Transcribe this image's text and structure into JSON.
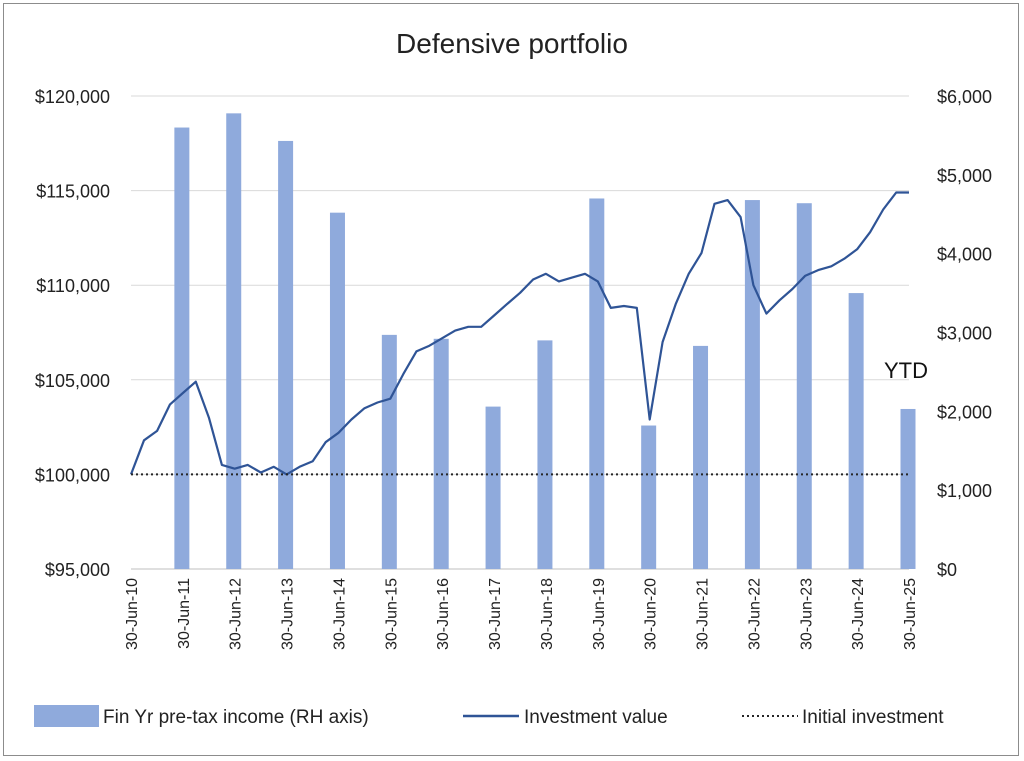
{
  "chart_data": {
    "type": "bar",
    "title": "Defensive portfolio",
    "left_axis": {
      "min": 95000,
      "max": 120000,
      "step": 5000,
      "tick_labels": [
        "$95,000",
        "$100,000",
        "$105,000",
        "$110,000",
        "$115,000",
        "$120,000"
      ]
    },
    "right_axis": {
      "min": 0,
      "max": 6000,
      "step": 1000,
      "tick_labels": [
        "$0",
        "$1,000",
        "$2,000",
        "$3,000",
        "$4,000",
        "$5,000",
        "$6,000"
      ]
    },
    "x_tick_labels": [
      "30-Jun-10",
      "30-Jun-11",
      "30-Jun-12",
      "30-Jun-13",
      "30-Jun-14",
      "30-Jun-15",
      "30-Jun-16",
      "30-Jun-17",
      "30-Jun-18",
      "30-Jun-19",
      "30-Jun-20",
      "30-Jun-21",
      "30-Jun-22",
      "30-Jun-23",
      "30-Jun-24",
      "30-Jun-25"
    ],
    "grid": true,
    "legend_position": "bottom",
    "series": [
      {
        "name": "Fin Yr pre-tax income (RH axis)",
        "type": "bar",
        "axis": "right",
        "color": "#8faadc",
        "categories": [
          "30-Jun-11",
          "30-Jun-12",
          "30-Jun-13",
          "30-Jun-14",
          "30-Jun-15",
          "30-Jun-16",
          "30-Jun-17",
          "30-Jun-18",
          "30-Jun-19",
          "30-Jun-20",
          "30-Jun-21",
          "30-Jun-22",
          "30-Jun-23",
          "30-Jun-24",
          "30-Jun-25"
        ],
        "values": [
          5600,
          5780,
          5430,
          4520,
          2970,
          2920,
          2060,
          2900,
          4700,
          1820,
          2830,
          4680,
          4640,
          3500,
          2030
        ]
      },
      {
        "name": "Investment value",
        "type": "line",
        "axis": "left",
        "color": "#2f5496",
        "x": [
          "30-Jun-10",
          "30-Sep-10",
          "31-Dec-10",
          "31-Mar-11",
          "30-Jun-11",
          "30-Sep-11",
          "31-Dec-11",
          "31-Mar-12",
          "30-Jun-12",
          "30-Sep-12",
          "31-Dec-12",
          "31-Mar-13",
          "30-Jun-13",
          "30-Sep-13",
          "31-Dec-13",
          "31-Mar-14",
          "30-Jun-14",
          "30-Sep-14",
          "31-Dec-14",
          "31-Mar-15",
          "30-Jun-15",
          "30-Sep-15",
          "31-Dec-15",
          "31-Mar-16",
          "30-Jun-16",
          "30-Sep-16",
          "31-Dec-16",
          "31-Mar-17",
          "30-Jun-17",
          "30-Sep-17",
          "31-Dec-17",
          "31-Mar-18",
          "30-Jun-18",
          "30-Sep-18",
          "31-Dec-18",
          "31-Mar-19",
          "30-Jun-19",
          "30-Sep-19",
          "31-Dec-19",
          "31-Mar-20",
          "30-Jun-20",
          "30-Sep-20",
          "31-Dec-20",
          "31-Mar-21",
          "30-Jun-21",
          "30-Sep-21",
          "31-Dec-21",
          "31-Mar-22",
          "30-Jun-22",
          "30-Sep-22",
          "31-Dec-22",
          "31-Mar-23",
          "30-Jun-23",
          "30-Sep-23",
          "31-Dec-23",
          "31-Mar-24",
          "30-Jun-24",
          "30-Sep-24",
          "31-Dec-24",
          "31-Mar-25",
          "30-Jun-25"
        ],
        "values": [
          100000,
          101800,
          102300,
          103700,
          104300,
          104900,
          103000,
          100500,
          100300,
          100500,
          100100,
          100400,
          100000,
          100400,
          100700,
          101700,
          102200,
          102900,
          103500,
          103800,
          104000,
          105300,
          106500,
          106800,
          107200,
          107600,
          107800,
          107800,
          108400,
          109000,
          109600,
          110300,
          110600,
          110200,
          110400,
          110600,
          110200,
          108800,
          108900,
          108800,
          102900,
          107000,
          109000,
          110600,
          111700,
          114300,
          114500,
          113600,
          110000,
          108500,
          109200,
          109800,
          110500,
          110800,
          111000,
          111400,
          111900,
          112800,
          114000,
          114900,
          114900
        ]
      },
      {
        "name": "Initial investment",
        "type": "line",
        "style": "dotted",
        "axis": "left",
        "color": "#262626",
        "x": [
          "30-Jun-10",
          "30-Jun-25"
        ],
        "values": [
          100000,
          100000
        ]
      }
    ],
    "annotations": [
      {
        "text": "YTD",
        "anchor": "30-Jun-25"
      }
    ]
  }
}
